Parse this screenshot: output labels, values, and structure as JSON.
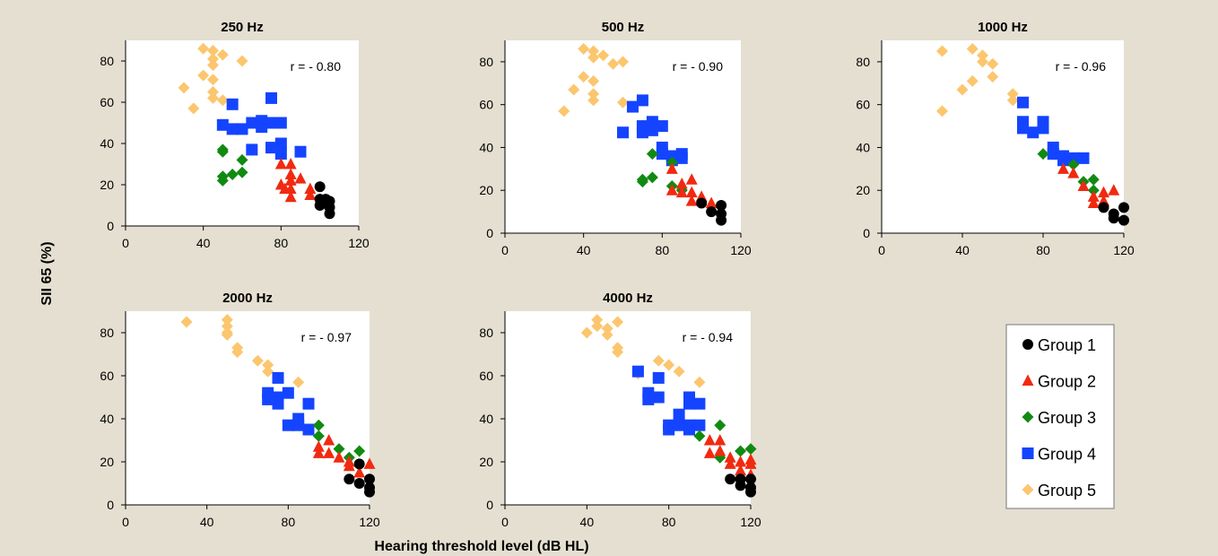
{
  "figure": {
    "ylabel": "SII 65 (%)",
    "xlabel": "Hearing threshold level (dB HL)",
    "background": "#e5dfd1"
  },
  "legend": {
    "placement": "right",
    "items": [
      {
        "label": "Group 1",
        "color": "#000000",
        "marker": "circle"
      },
      {
        "label": "Group 2",
        "color": "#f02a10",
        "marker": "triangle"
      },
      {
        "label": "Group 3",
        "color": "#118a11",
        "marker": "diamond"
      },
      {
        "label": "Group 4",
        "color": "#1444ff",
        "marker": "square"
      },
      {
        "label": "Group 5",
        "color": "#fcc66e",
        "marker": "diamond"
      }
    ]
  },
  "chart_data": [
    {
      "type": "scatter",
      "title": "250 Hz",
      "annotation": "r = - 0.80",
      "xlim": [
        0,
        120
      ],
      "ylim": [
        0,
        90
      ],
      "xticks": [
        0,
        40,
        80,
        120
      ],
      "yticks": [
        0,
        20,
        40,
        60,
        80
      ],
      "series": [
        {
          "name": "Group 1",
          "points": [
            [
              100,
              19
            ],
            [
              100,
              13
            ],
            [
              100,
              10
            ],
            [
              103,
              13
            ],
            [
              105,
              12
            ],
            [
              105,
              9
            ],
            [
              105,
              6
            ]
          ]
        },
        {
          "name": "Group 2",
          "points": [
            [
              80,
              30
            ],
            [
              80,
              20
            ],
            [
              82,
              18
            ],
            [
              85,
              30
            ],
            [
              85,
              25
            ],
            [
              85,
              22
            ],
            [
              85,
              18
            ],
            [
              85,
              14
            ],
            [
              90,
              23
            ],
            [
              95,
              18
            ],
            [
              95,
              15
            ]
          ]
        },
        {
          "name": "Group 3",
          "points": [
            [
              50,
              37
            ],
            [
              50,
              36
            ],
            [
              50,
              24
            ],
            [
              50,
              22
            ],
            [
              55,
              25
            ],
            [
              60,
              32
            ],
            [
              60,
              26
            ]
          ]
        },
        {
          "name": "Group 4",
          "points": [
            [
              50,
              49
            ],
            [
              55,
              59
            ],
            [
              55,
              47
            ],
            [
              60,
              47
            ],
            [
              65,
              50
            ],
            [
              65,
              37
            ],
            [
              70,
              51
            ],
            [
              70,
              48
            ],
            [
              75,
              62
            ],
            [
              75,
              50
            ],
            [
              75,
              38
            ],
            [
              80,
              50
            ],
            [
              80,
              40
            ],
            [
              80,
              35
            ],
            [
              90,
              36
            ]
          ]
        },
        {
          "name": "Group 5",
          "points": [
            [
              30,
              67
            ],
            [
              35,
              57
            ],
            [
              40,
              86
            ],
            [
              40,
              73
            ],
            [
              45,
              85
            ],
            [
              45,
              81
            ],
            [
              45,
              78
            ],
            [
              45,
              71
            ],
            [
              45,
              65
            ],
            [
              45,
              62
            ],
            [
              50,
              83
            ],
            [
              50,
              61
            ],
            [
              60,
              80
            ]
          ]
        }
      ]
    },
    {
      "type": "scatter",
      "title": "500 Hz",
      "annotation": "r = - 0.90",
      "xlim": [
        0,
        120
      ],
      "ylim": [
        0,
        90
      ],
      "xticks": [
        0,
        40,
        80,
        120
      ],
      "yticks": [
        0,
        20,
        40,
        60,
        80
      ],
      "series": [
        {
          "name": "Group 1",
          "points": [
            [
              100,
              14
            ],
            [
              105,
              10
            ],
            [
              110,
              13
            ],
            [
              110,
              9
            ],
            [
              110,
              6
            ]
          ]
        },
        {
          "name": "Group 2",
          "points": [
            [
              85,
              30
            ],
            [
              85,
              20
            ],
            [
              90,
              23
            ],
            [
              90,
              19
            ],
            [
              95,
              25
            ],
            [
              95,
              19
            ],
            [
              95,
              15
            ],
            [
              100,
              17
            ],
            [
              105,
              14
            ]
          ]
        },
        {
          "name": "Group 3",
          "points": [
            [
              70,
              25
            ],
            [
              70,
              24
            ],
            [
              75,
              37
            ],
            [
              75,
              26
            ],
            [
              85,
              33
            ],
            [
              85,
              22
            ],
            [
              90,
              20
            ]
          ]
        },
        {
          "name": "Group 4",
          "points": [
            [
              60,
              47
            ],
            [
              65,
              59
            ],
            [
              70,
              62
            ],
            [
              70,
              50
            ],
            [
              70,
              47
            ],
            [
              75,
              52
            ],
            [
              75,
              48
            ],
            [
              80,
              50
            ],
            [
              80,
              40
            ],
            [
              80,
              37
            ],
            [
              85,
              36
            ],
            [
              85,
              34
            ],
            [
              90,
              37
            ],
            [
              90,
              35
            ]
          ]
        },
        {
          "name": "Group 5",
          "points": [
            [
              30,
              57
            ],
            [
              35,
              67
            ],
            [
              40,
              86
            ],
            [
              40,
              73
            ],
            [
              45,
              85
            ],
            [
              45,
              82
            ],
            [
              45,
              71
            ],
            [
              45,
              65
            ],
            [
              45,
              62
            ],
            [
              50,
              83
            ],
            [
              55,
              79
            ],
            [
              60,
              80
            ],
            [
              60,
              61
            ]
          ]
        }
      ]
    },
    {
      "type": "scatter",
      "title": "1000 Hz",
      "annotation": "r = - 0.96",
      "xlim": [
        0,
        120
      ],
      "ylim": [
        0,
        90
      ],
      "xticks": [
        0,
        40,
        80,
        120
      ],
      "yticks": [
        0,
        20,
        40,
        60,
        80
      ],
      "series": [
        {
          "name": "Group 1",
          "points": [
            [
              110,
              12
            ],
            [
              115,
              9
            ],
            [
              115,
              7
            ],
            [
              120,
              12
            ],
            [
              120,
              6
            ]
          ]
        },
        {
          "name": "Group 2",
          "points": [
            [
              90,
              30
            ],
            [
              95,
              28
            ],
            [
              100,
              22
            ],
            [
              105,
              17
            ],
            [
              105,
              14
            ],
            [
              110,
              19
            ],
            [
              110,
              15
            ],
            [
              115,
              20
            ]
          ]
        },
        {
          "name": "Group 3",
          "points": [
            [
              80,
              37
            ],
            [
              95,
              32
            ],
            [
              100,
              24
            ],
            [
              105,
              25
            ],
            [
              105,
              20
            ]
          ]
        },
        {
          "name": "Group 4",
          "points": [
            [
              70,
              61
            ],
            [
              70,
              52
            ],
            [
              70,
              49
            ],
            [
              75,
              47
            ],
            [
              80,
              52
            ],
            [
              80,
              49
            ],
            [
              85,
              40
            ],
            [
              85,
              37
            ],
            [
              90,
              36
            ],
            [
              90,
              34
            ],
            [
              95,
              35
            ],
            [
              100,
              35
            ]
          ]
        },
        {
          "name": "Group 5",
          "points": [
            [
              30,
              85
            ],
            [
              30,
              57
            ],
            [
              40,
              67
            ],
            [
              45,
              86
            ],
            [
              45,
              71
            ],
            [
              50,
              83
            ],
            [
              50,
              80
            ],
            [
              55,
              79
            ],
            [
              55,
              73
            ],
            [
              65,
              65
            ],
            [
              65,
              62
            ],
            [
              70,
              61
            ]
          ]
        }
      ]
    },
    {
      "type": "scatter",
      "title": "2000 Hz",
      "annotation": "r = - 0.97",
      "xlim": [
        0,
        120
      ],
      "ylim": [
        0,
        90
      ],
      "xticks": [
        0,
        40,
        80,
        120
      ],
      "yticks": [
        0,
        20,
        40,
        60,
        80
      ],
      "series": [
        {
          "name": "Group 1",
          "points": [
            [
              110,
              12
            ],
            [
              115,
              19
            ],
            [
              115,
              10
            ],
            [
              120,
              12
            ],
            [
              120,
              8
            ],
            [
              120,
              6
            ]
          ]
        },
        {
          "name": "Group 2",
          "points": [
            [
              95,
              27
            ],
            [
              95,
              24
            ],
            [
              100,
              30
            ],
            [
              100,
              24
            ],
            [
              105,
              22
            ],
            [
              110,
              20
            ],
            [
              110,
              18
            ],
            [
              115,
              15
            ],
            [
              120,
              19
            ]
          ]
        },
        {
          "name": "Group 3",
          "points": [
            [
              95,
              37
            ],
            [
              95,
              32
            ],
            [
              105,
              26
            ],
            [
              110,
              22
            ],
            [
              115,
              25
            ]
          ]
        },
        {
          "name": "Group 4",
          "points": [
            [
              70,
              52
            ],
            [
              70,
              49
            ],
            [
              75,
              59
            ],
            [
              75,
              50
            ],
            [
              75,
              47
            ],
            [
              80,
              52
            ],
            [
              80,
              37
            ],
            [
              85,
              40
            ],
            [
              85,
              37
            ],
            [
              90,
              47
            ],
            [
              90,
              35
            ]
          ]
        },
        {
          "name": "Group 5",
          "points": [
            [
              30,
              85
            ],
            [
              50,
              86
            ],
            [
              50,
              83
            ],
            [
              50,
              80
            ],
            [
              50,
              79
            ],
            [
              55,
              73
            ],
            [
              55,
              71
            ],
            [
              65,
              67
            ],
            [
              70,
              65
            ],
            [
              70,
              62
            ],
            [
              85,
              57
            ]
          ]
        }
      ]
    },
    {
      "type": "scatter",
      "title": "4000 Hz",
      "annotation": "r = - 0.94",
      "xlim": [
        0,
        120
      ],
      "ylim": [
        0,
        90
      ],
      "xticks": [
        0,
        40,
        80,
        120
      ],
      "yticks": [
        0,
        20,
        40,
        60,
        80
      ],
      "series": [
        {
          "name": "Group 1",
          "points": [
            [
              110,
              12
            ],
            [
              115,
              12
            ],
            [
              115,
              9
            ],
            [
              120,
              12
            ],
            [
              120,
              8
            ],
            [
              120,
              6
            ]
          ]
        },
        {
          "name": "Group 2",
          "points": [
            [
              100,
              30
            ],
            [
              100,
              24
            ],
            [
              105,
              30
            ],
            [
              105,
              25
            ],
            [
              110,
              22
            ],
            [
              110,
              19
            ],
            [
              115,
              20
            ],
            [
              115,
              16
            ],
            [
              120,
              21
            ],
            [
              120,
              19
            ],
            [
              120,
              14
            ]
          ]
        },
        {
          "name": "Group 3",
          "points": [
            [
              95,
              32
            ],
            [
              105,
              37
            ],
            [
              105,
              22
            ],
            [
              115,
              25
            ],
            [
              120,
              26
            ]
          ]
        },
        {
          "name": "Group 4",
          "points": [
            [
              65,
              62
            ],
            [
              70,
              52
            ],
            [
              70,
              49
            ],
            [
              75,
              59
            ],
            [
              75,
              50
            ],
            [
              80,
              37
            ],
            [
              80,
              35
            ],
            [
              85,
              42
            ],
            [
              85,
              37
            ],
            [
              90,
              50
            ],
            [
              90,
              47
            ],
            [
              90,
              37
            ],
            [
              90,
              35
            ],
            [
              95,
              47
            ],
            [
              95,
              37
            ]
          ]
        },
        {
          "name": "Group 5",
          "points": [
            [
              40,
              80
            ],
            [
              45,
              86
            ],
            [
              45,
              83
            ],
            [
              50,
              82
            ],
            [
              50,
              79
            ],
            [
              55,
              85
            ],
            [
              55,
              73
            ],
            [
              55,
              71
            ],
            [
              65,
              61
            ],
            [
              75,
              67
            ],
            [
              80,
              65
            ],
            [
              85,
              62
            ],
            [
              95,
              57
            ]
          ]
        }
      ]
    }
  ]
}
